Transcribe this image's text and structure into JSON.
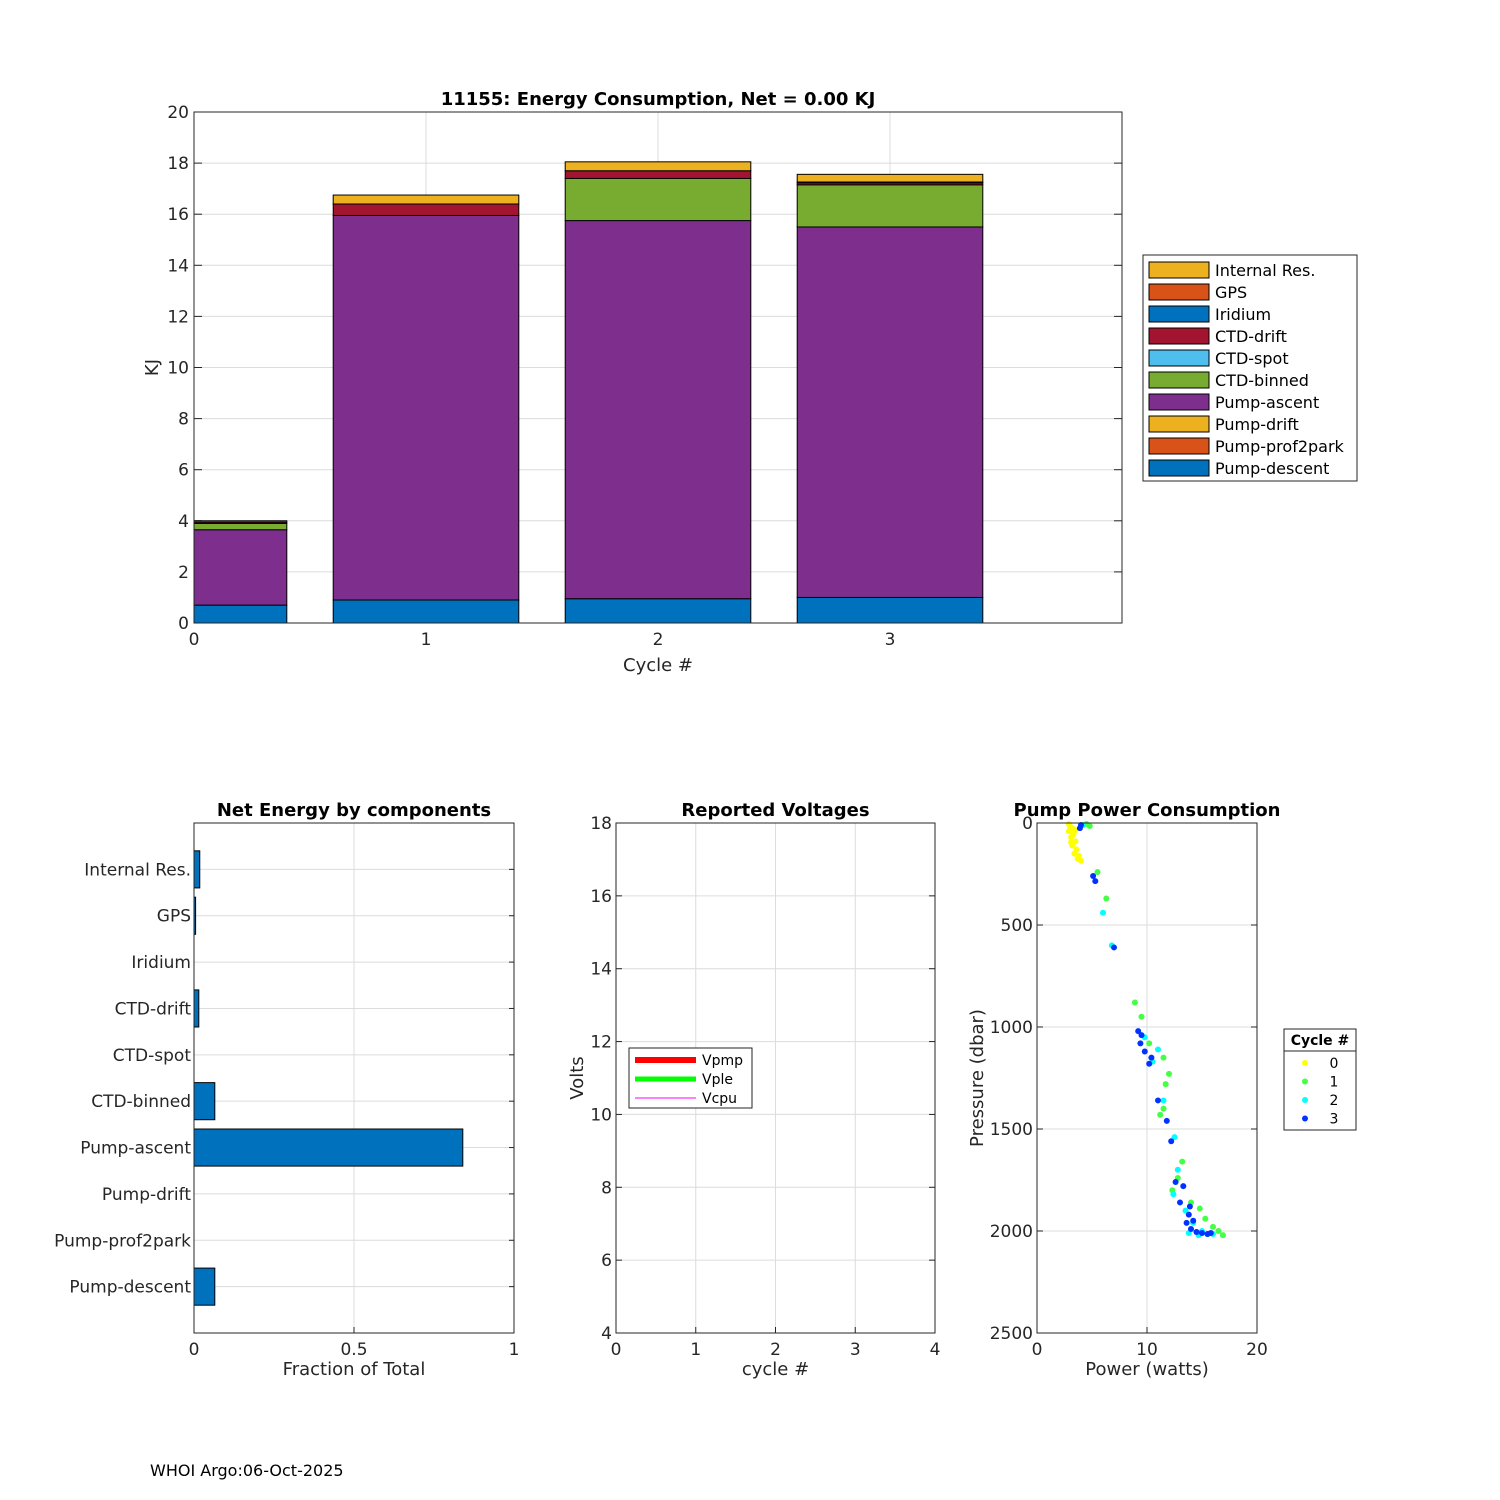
{
  "colors": {
    "Internal Res.": "#EDB120",
    "GPS": "#D95319",
    "Iridium": "#0072BD",
    "CTD-drift": "#A2142F",
    "CTD-spot": "#4DBEEE",
    "CTD-binned": "#77AC30",
    "Pump-ascent": "#7E2F8E",
    "Pump-drift": "#EDB120",
    "Pump-prof2park": "#D95319",
    "Pump-descent": "#0072BD"
  },
  "footer": "WHOI Argo:06-Oct-2025",
  "chart_data": [
    {
      "id": "energy",
      "type": "bar",
      "stacked": true,
      "title": "11155: Energy Consumption,  Net =   0.00 KJ",
      "xlabel": "Cycle #",
      "ylabel": "KJ",
      "xlim": [
        0,
        4
      ],
      "ylim": [
        0,
        20
      ],
      "xticks": [
        "0",
        "1",
        "2",
        "3"
      ],
      "yticks": [
        "0",
        "2",
        "4",
        "6",
        "8",
        "10",
        "12",
        "14",
        "16",
        "18",
        "20"
      ],
      "categories": [
        0,
        1,
        2,
        3
      ],
      "legend_title": "",
      "legend": [
        "Internal Res.",
        "GPS",
        "Iridium",
        "CTD-drift",
        "CTD-spot",
        "CTD-binned",
        "Pump-ascent",
        "Pump-drift",
        "Pump-prof2park",
        "Pump-descent"
      ],
      "series": [
        {
          "name": "Pump-descent",
          "values": [
            0.7,
            0.9,
            0.95,
            1.0
          ]
        },
        {
          "name": "Pump-prof2park",
          "values": [
            0,
            0,
            0,
            0
          ]
        },
        {
          "name": "Pump-drift",
          "values": [
            0,
            0,
            0,
            0
          ]
        },
        {
          "name": "Pump-ascent",
          "values": [
            2.95,
            15.05,
            14.8,
            14.5
          ]
        },
        {
          "name": "CTD-binned",
          "values": [
            0.25,
            0,
            1.65,
            1.65
          ]
        },
        {
          "name": "CTD-spot",
          "values": [
            0,
            0,
            0,
            0
          ]
        },
        {
          "name": "CTD-drift",
          "values": [
            0.05,
            0.45,
            0.3,
            0.08
          ]
        },
        {
          "name": "Iridium",
          "values": [
            0,
            0,
            0,
            0
          ]
        },
        {
          "name": "GPS",
          "values": [
            0,
            0,
            0,
            0.03
          ]
        },
        {
          "name": "Internal Res.",
          "values": [
            0.05,
            0.35,
            0.35,
            0.3
          ]
        }
      ]
    },
    {
      "id": "components",
      "type": "bar",
      "orientation": "horizontal",
      "title": "Net Energy by components",
      "xlabel": "Fraction of Total",
      "xlim": [
        0,
        1
      ],
      "xticks": [
        "0",
        "0.5",
        "1"
      ],
      "categories": [
        "Internal Res.",
        "GPS",
        "Iridium",
        "CTD-drift",
        "CTD-spot",
        "CTD-binned",
        "Pump-ascent",
        "Pump-drift",
        "Pump-prof2park",
        "Pump-descent"
      ],
      "values": [
        0.018,
        0.005,
        0,
        0.015,
        0,
        0.065,
        0.84,
        0,
        0,
        0.065
      ]
    },
    {
      "id": "voltages",
      "type": "line",
      "title": "Reported Voltages",
      "xlabel": "cycle #",
      "ylabel": "Volts",
      "xlim": [
        0,
        4
      ],
      "ylim": [
        4,
        18
      ],
      "xticks": [
        "0",
        "1",
        "2",
        "3",
        "4"
      ],
      "yticks": [
        "4",
        "6",
        "8",
        "10",
        "12",
        "14",
        "16",
        "18"
      ],
      "series": [
        {
          "name": "Vpmp",
          "color": "#ff0000",
          "values": []
        },
        {
          "name": "Vple",
          "color": "#00ff00",
          "values": []
        },
        {
          "name": "Vcpu",
          "color": "#ff00ff",
          "values": []
        }
      ]
    },
    {
      "id": "pump",
      "type": "scatter",
      "title": "Pump Power Consumption",
      "xlabel": "Power (watts)",
      "ylabel": "Pressure (dbar)",
      "xlim": [
        0,
        20
      ],
      "ylim": [
        0,
        2500
      ],
      "y_reversed": true,
      "xticks": [
        "0",
        "10",
        "20"
      ],
      "yticks": [
        "0",
        "500",
        "1000",
        "1500",
        "2000",
        "2500"
      ],
      "legend_title": "Cycle #",
      "series": [
        {
          "name": "0",
          "color": "#ffff00",
          "points": [
            [
              2.9,
              5
            ],
            [
              3.0,
              15
            ],
            [
              3.2,
              25
            ],
            [
              2.9,
              40
            ],
            [
              3.3,
              55
            ],
            [
              3.1,
              70
            ],
            [
              3.5,
              90
            ],
            [
              3.2,
              110
            ],
            [
              3.6,
              130
            ],
            [
              3.4,
              150
            ],
            [
              3.8,
              160
            ],
            [
              3.7,
              175
            ],
            [
              4.0,
              185
            ],
            [
              3.5,
              35
            ],
            [
              3.1,
              95
            ]
          ]
        },
        {
          "name": "1",
          "color": "#44ff44",
          "points": [
            [
              4.5,
              5
            ],
            [
              4.8,
              15
            ],
            [
              5.5,
              240
            ],
            [
              6.3,
              370
            ],
            [
              8.9,
              880
            ],
            [
              9.5,
              950
            ],
            [
              10.2,
              1080
            ],
            [
              11.5,
              1150
            ],
            [
              12.0,
              1230
            ],
            [
              11.7,
              1280
            ],
            [
              11.5,
              1400
            ],
            [
              11.2,
              1430
            ],
            [
              13.2,
              1660
            ],
            [
              12.8,
              1740
            ],
            [
              12.3,
              1800
            ],
            [
              14.0,
              1860
            ],
            [
              14.8,
              1890
            ],
            [
              15.3,
              1940
            ],
            [
              16.0,
              1980
            ],
            [
              16.5,
              2000
            ],
            [
              16.9,
              2020
            ],
            [
              15.5,
              2015
            ],
            [
              14.5,
              2005
            ]
          ]
        },
        {
          "name": "2",
          "color": "#00ffff",
          "points": [
            [
              4.2,
              10
            ],
            [
              6.0,
              440
            ],
            [
              6.8,
              600
            ],
            [
              9.8,
              1050
            ],
            [
              11.0,
              1110
            ],
            [
              10.5,
              1170
            ],
            [
              11.5,
              1360
            ],
            [
              12.5,
              1540
            ],
            [
              12.8,
              1700
            ],
            [
              12.4,
              1820
            ],
            [
              13.5,
              1900
            ],
            [
              14.2,
              1960
            ],
            [
              15.0,
              2000
            ],
            [
              13.8,
              2010
            ],
            [
              14.7,
              2020
            ],
            [
              16.0,
              2015
            ]
          ]
        },
        {
          "name": "3",
          "color": "#0033ff",
          "points": [
            [
              4.0,
              10
            ],
            [
              3.9,
              25
            ],
            [
              5.1,
              260
            ],
            [
              5.3,
              285
            ],
            [
              7.0,
              610
            ],
            [
              9.2,
              1020
            ],
            [
              9.5,
              1040
            ],
            [
              9.4,
              1080
            ],
            [
              9.8,
              1120
            ],
            [
              10.4,
              1150
            ],
            [
              10.2,
              1180
            ],
            [
              11.0,
              1360
            ],
            [
              11.8,
              1460
            ],
            [
              12.2,
              1560
            ],
            [
              12.6,
              1760
            ],
            [
              13.3,
              1780
            ],
            [
              13.0,
              1860
            ],
            [
              13.8,
              1920
            ],
            [
              13.6,
              1960
            ],
            [
              14.0,
              1990
            ],
            [
              14.5,
              2005
            ],
            [
              15.0,
              2010
            ],
            [
              15.5,
              2015
            ],
            [
              15.8,
              2010
            ],
            [
              14.2,
              1950
            ],
            [
              13.9,
              1880
            ]
          ]
        }
      ]
    }
  ]
}
